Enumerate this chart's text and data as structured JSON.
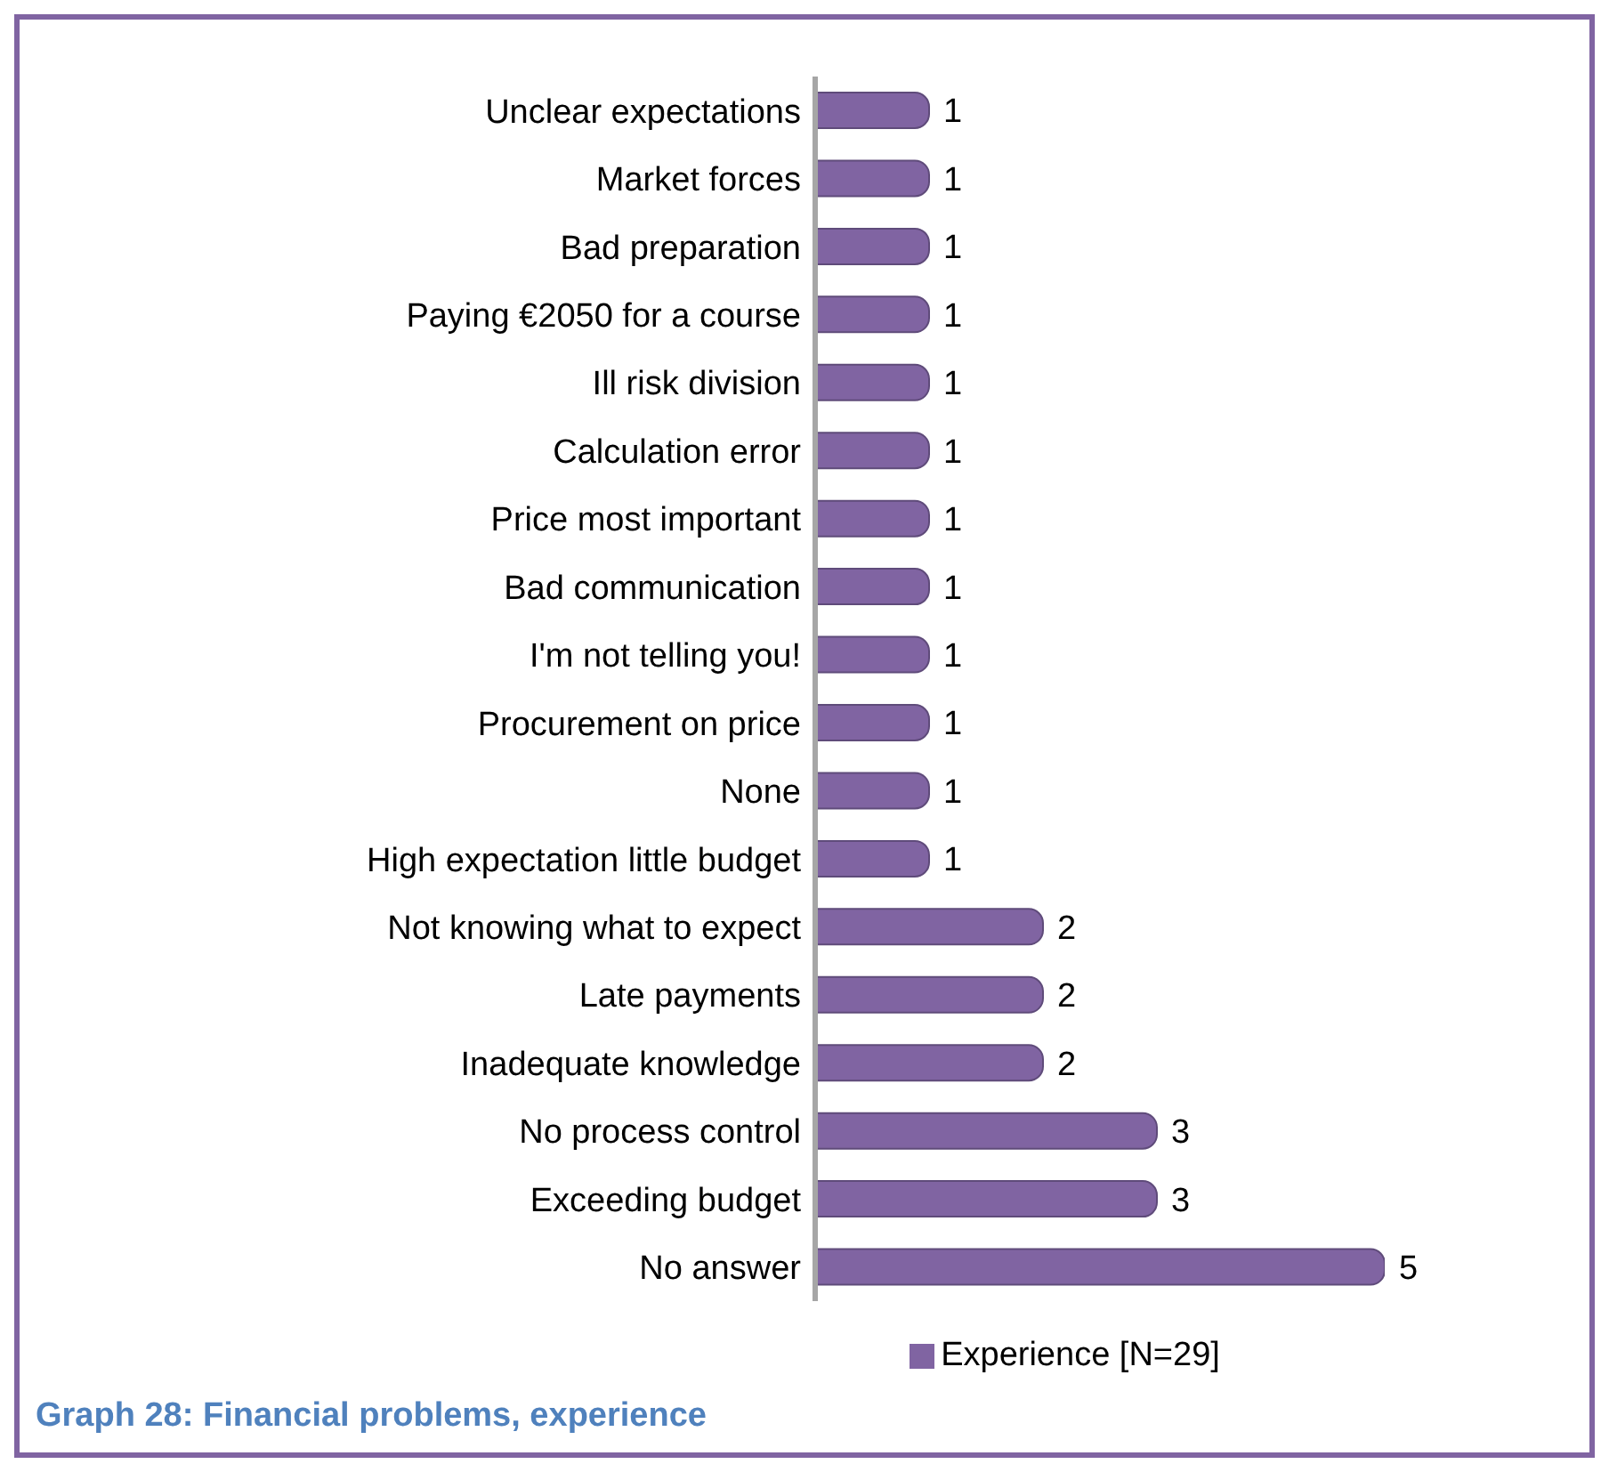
{
  "chart_data": {
    "type": "bar",
    "orientation": "horizontal",
    "categories": [
      "Unclear expectations",
      "Market forces",
      "Bad preparation",
      "Paying €2050 for a course",
      "Ill risk division",
      "Calculation error",
      "Price most important",
      "Bad communication",
      "I'm not telling you!",
      "Procurement on price",
      "None",
      "High expectation little budget",
      "Not knowing what to expect",
      "Late payments",
      "Inadequate knowledge",
      "No process control",
      "Exceeding budget",
      "No answer"
    ],
    "series": [
      {
        "name": "Experience [N=29]",
        "color": "#8064a2",
        "values": [
          1,
          1,
          1,
          1,
          1,
          1,
          1,
          1,
          1,
          1,
          1,
          1,
          2,
          2,
          2,
          3,
          3,
          5
        ]
      }
    ],
    "data_labels": true,
    "legend": "bottom",
    "grid": false,
    "annotations": [
      "Graph 28: Financial problems, experience"
    ]
  }
}
